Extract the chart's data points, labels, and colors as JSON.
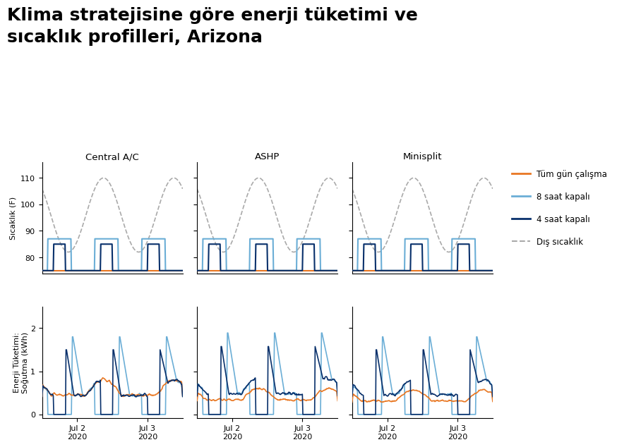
{
  "title_line1": "Klima stratejisine göre enerji tüketimi ve",
  "title_line2": "sıcaklık profilleri, Arizona",
  "title_fontsize": 18,
  "col_titles": [
    "Central A/C",
    "ASHP",
    "Minisplit"
  ],
  "ylabel_temp": "Sıcaklık (F)",
  "ylabel_energy": "Enerji Tüketimi:\nSoğutma (kWh)",
  "temp_yticks": [
    80,
    90,
    100,
    110
  ],
  "temp_ylim": [
    74,
    116
  ],
  "energy_yticks": [
    0,
    1,
    2
  ],
  "energy_ylim": [
    -0.08,
    2.5
  ],
  "color_always_on": "#E87722",
  "color_8h_off": "#6BAED6",
  "color_4h_off": "#08306B",
  "color_outdoor": "#AAAAAA",
  "legend_labels": [
    "Tüm gün çalışma",
    "8 saat kapalı",
    "4 saat kapalı",
    "Dış sıcaklık"
  ],
  "background_color": "#FFFFFF",
  "n_pts": 288
}
